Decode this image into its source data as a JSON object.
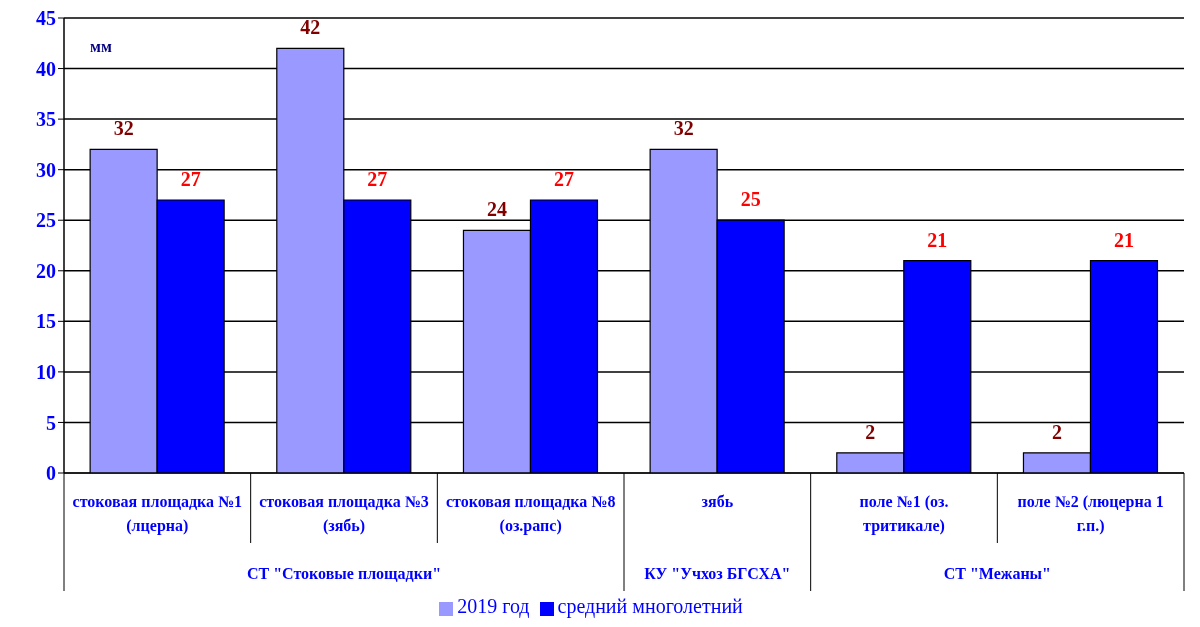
{
  "chart_data": {
    "type": "bar",
    "ylabel": "мм",
    "categories": [
      "стоковая площадка №1 (лцерна)",
      "стоковая площадка №3 (зябь)",
      "стоковая площадка №8 (оз.рапс)",
      "зябь",
      "поле №1 (оз. тритикале)",
      "поле №2 (люцерна 1 г.п.)"
    ],
    "series": [
      {
        "name": "2019 год",
        "color": "#9999ff",
        "values": [
          32,
          42,
          24,
          32,
          2,
          2
        ]
      },
      {
        "name": "средний многолетний",
        "color": "#0000ff",
        "values": [
          27,
          27,
          27,
          25,
          21,
          21
        ]
      }
    ],
    "annotations": [
      "СТ \"Стоковые площадки\"",
      "КУ \"Учхоз БГСХА\"",
      "СТ \"Межаны\""
    ],
    "ylim": [
      0,
      45
    ],
    "yticks": [
      0,
      5,
      10,
      15,
      20,
      25,
      30,
      35,
      40,
      45
    ],
    "grid": "y",
    "legend": "bottom",
    "data_labels": true
  }
}
